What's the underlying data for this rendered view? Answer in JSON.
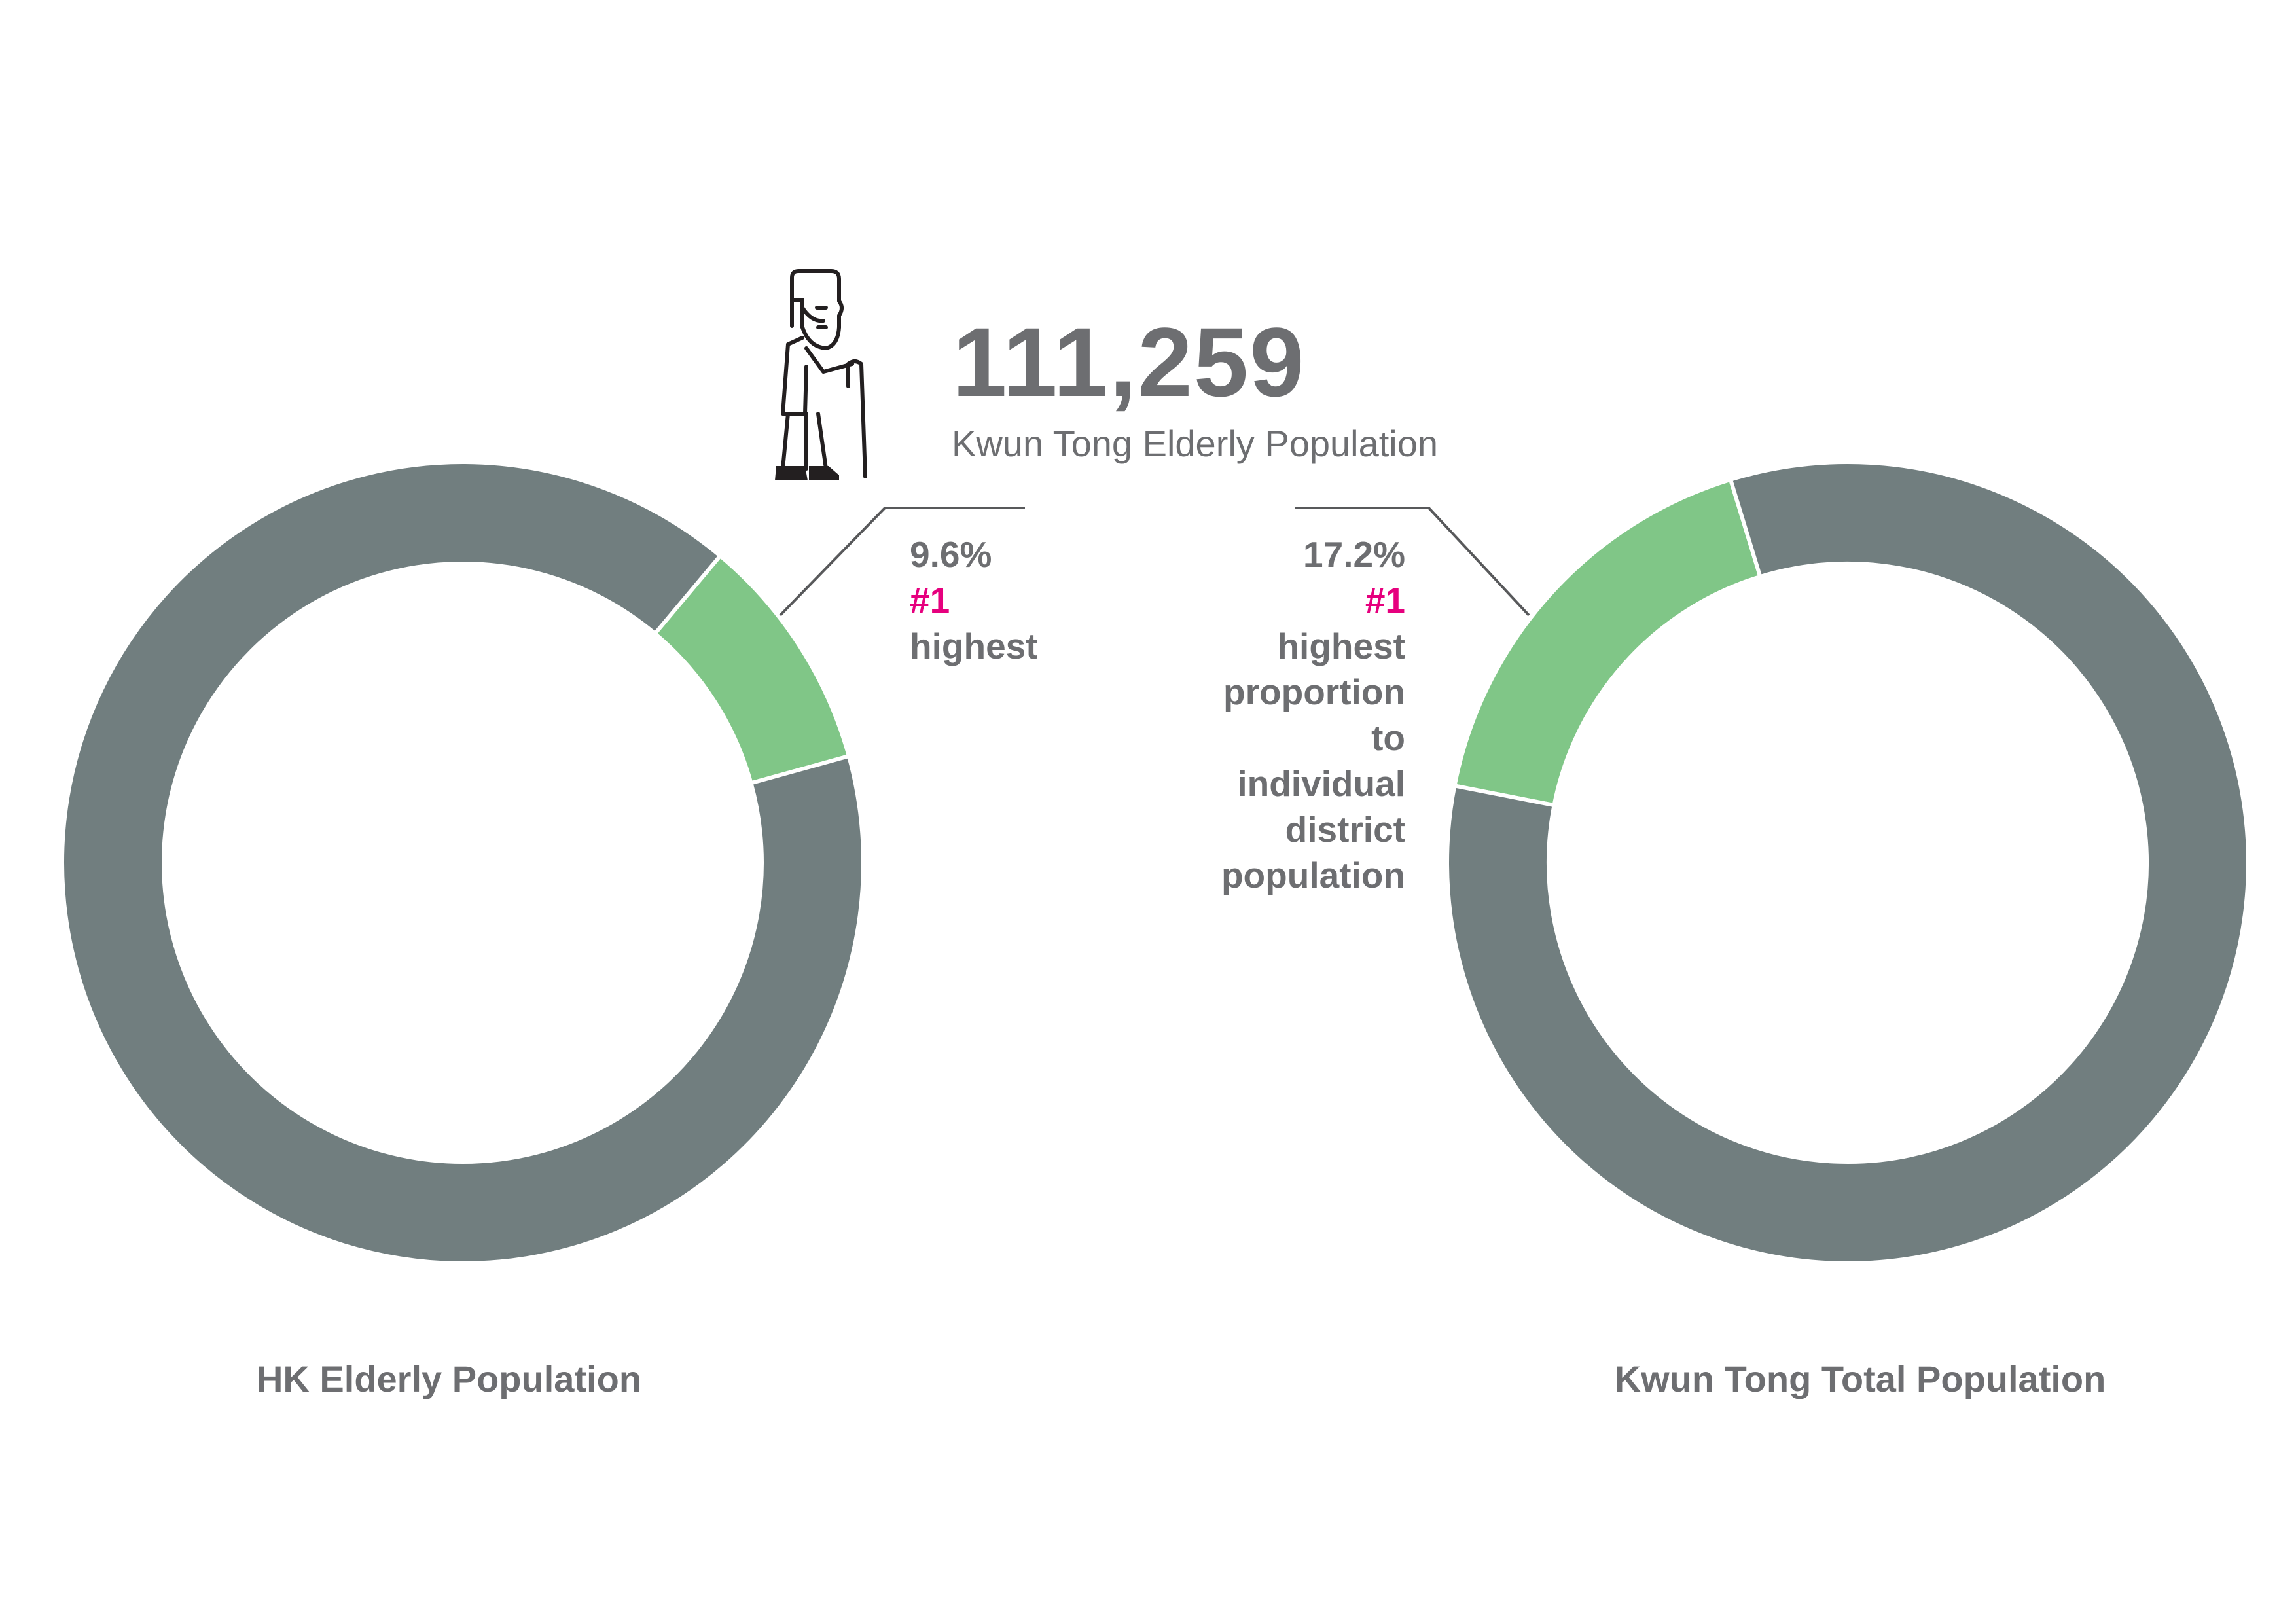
{
  "colors": {
    "grey": "#717e7f",
    "green": "#80c687",
    "text": "#6d6e71",
    "highlight": "#e6007e",
    "leader": "#58595b",
    "icon": "#231f20"
  },
  "header": {
    "icon": "elderly-person-with-cane-icon",
    "number": "111,259",
    "label": "Kwun Tong Elderly Population"
  },
  "chart_data": [
    {
      "type": "pie",
      "title": "HK Elderly Population",
      "slices": [
        {
          "label": "Kwun Tong",
          "value": 9.6,
          "color": "#80c687"
        },
        {
          "label": "",
          "value": 90.4,
          "color": "#717e7f"
        }
      ],
      "annotation": {
        "value": "9.6%",
        "rank": "#1",
        "lines": [
          "highest"
        ]
      }
    },
    {
      "type": "pie",
      "title": "Kwun Tong Total Population",
      "slices": [
        {
          "label": "Elderly",
          "value": 17.2,
          "color": "#80c687"
        },
        {
          "label": "",
          "value": 82.8,
          "color": "#717e7f"
        }
      ],
      "annotation": {
        "value": "17.2%",
        "rank": "#1",
        "lines": [
          "highest",
          "proportion",
          "to",
          "individual",
          "district",
          "population"
        ]
      }
    }
  ]
}
